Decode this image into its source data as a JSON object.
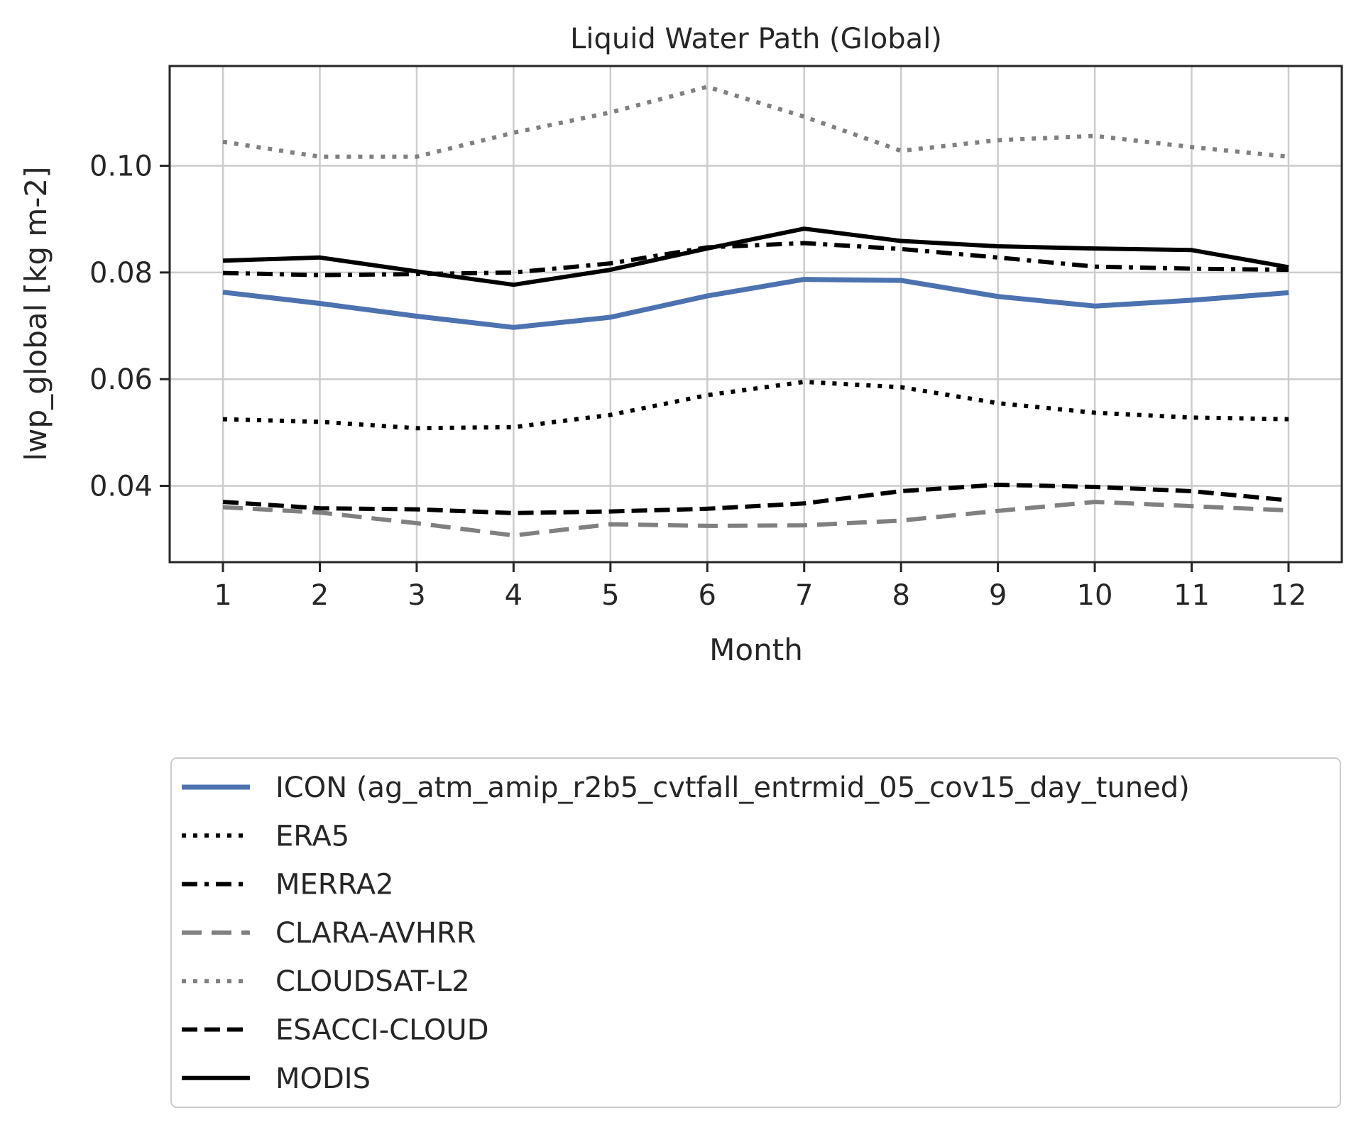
{
  "chart_data": {
    "type": "line",
    "title": "Liquid Water Path (Global)",
    "xlabel": "Month",
    "ylabel": "lwp_global [kg m-2]",
    "x": [
      1,
      2,
      3,
      4,
      5,
      6,
      7,
      8,
      9,
      10,
      11,
      12
    ],
    "xlim": [
      0.45,
      12.55
    ],
    "ylim": [
      0.0257,
      0.1187
    ],
    "yticks": [
      0.04,
      0.06,
      0.08,
      0.1
    ],
    "ytick_labels": [
      "0.04",
      "0.06",
      "0.08",
      "0.10"
    ],
    "xtick_labels": [
      "1",
      "2",
      "3",
      "4",
      "5",
      "6",
      "7",
      "8",
      "9",
      "10",
      "11",
      "12"
    ],
    "grid": true,
    "legend_position": "below-plot",
    "series": [
      {
        "name": "ICON (ag_atm_amip_r2b5_cvtfall_entrmid_05_cov15_day_tuned)",
        "color": "#4c72b0",
        "style": "solid",
        "values": [
          0.0763,
          0.0742,
          0.0718,
          0.0697,
          0.0716,
          0.0756,
          0.0787,
          0.0785,
          0.0755,
          0.0737,
          0.0748,
          0.0762
        ]
      },
      {
        "name": "ERA5",
        "color": "#000000",
        "style": "dotted",
        "values": [
          0.0525,
          0.052,
          0.0508,
          0.051,
          0.0533,
          0.057,
          0.0595,
          0.0585,
          0.0555,
          0.0537,
          0.0528,
          0.0525
        ]
      },
      {
        "name": "MERRA2",
        "color": "#000000",
        "style": "dashdot",
        "values": [
          0.0799,
          0.0795,
          0.0797,
          0.08,
          0.0817,
          0.0847,
          0.0855,
          0.0844,
          0.0828,
          0.0811,
          0.0807,
          0.0805
        ]
      },
      {
        "name": "CLARA-AVHRR",
        "color": "#808080",
        "style": "dashed-long",
        "values": [
          0.036,
          0.035,
          0.033,
          0.0307,
          0.0328,
          0.0325,
          0.0326,
          0.0335,
          0.0353,
          0.037,
          0.0362,
          0.0354
        ]
      },
      {
        "name": "CLOUDSAT-L2",
        "color": "#808080",
        "style": "dotted",
        "values": [
          0.1045,
          0.1017,
          0.1017,
          0.1062,
          0.11,
          0.1148,
          0.1092,
          0.1028,
          0.1048,
          0.1056,
          0.1035,
          0.1017
        ]
      },
      {
        "name": "ESACCI-CLOUD",
        "color": "#000000",
        "style": "dashed",
        "values": [
          0.037,
          0.0358,
          0.0356,
          0.0349,
          0.0352,
          0.0357,
          0.0367,
          0.039,
          0.0402,
          0.0398,
          0.039,
          0.0373
        ]
      },
      {
        "name": "MODIS",
        "color": "#000000",
        "style": "solid",
        "values": [
          0.0822,
          0.0828,
          0.0802,
          0.0777,
          0.0805,
          0.0845,
          0.0882,
          0.0859,
          0.0849,
          0.0845,
          0.0842,
          0.081
        ]
      }
    ]
  }
}
